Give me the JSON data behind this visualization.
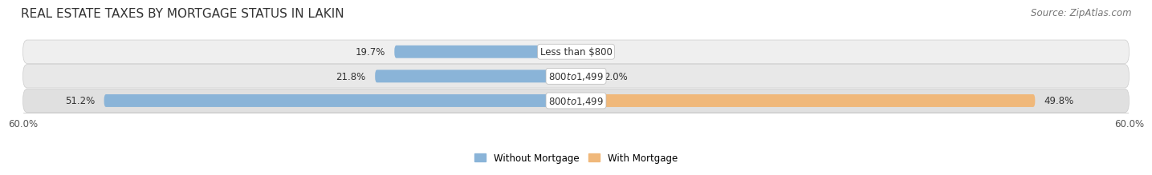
{
  "title": "REAL ESTATE TAXES BY MORTGAGE STATUS IN LAKIN",
  "source": "Source: ZipAtlas.com",
  "rows": [
    {
      "label": "Less than $800",
      "without_mortgage": 19.7,
      "with_mortgage": 0.0
    },
    {
      "label": "$800 to $1,499",
      "without_mortgage": 21.8,
      "with_mortgage": 2.0
    },
    {
      "label": "$800 to $1,499",
      "without_mortgage": 51.2,
      "with_mortgage": 49.8
    }
  ],
  "x_max": 60.0,
  "x_min": -60.0,
  "color_without": "#8ab4d8",
  "color_with": "#f0b87a",
  "color_without_light": "#c5d9ed",
  "color_with_light": "#f5d4a8",
  "row_bg_color_top": "#efefef",
  "row_bg_color_mid": "#e8e8e8",
  "row_bg_color_bot": "#e0e0e0",
  "title_fontsize": 11,
  "source_fontsize": 8.5,
  "label_fontsize": 8.5,
  "tick_fontsize": 8.5,
  "legend_without": "Without Mortgage",
  "legend_with": "With Mortgage"
}
